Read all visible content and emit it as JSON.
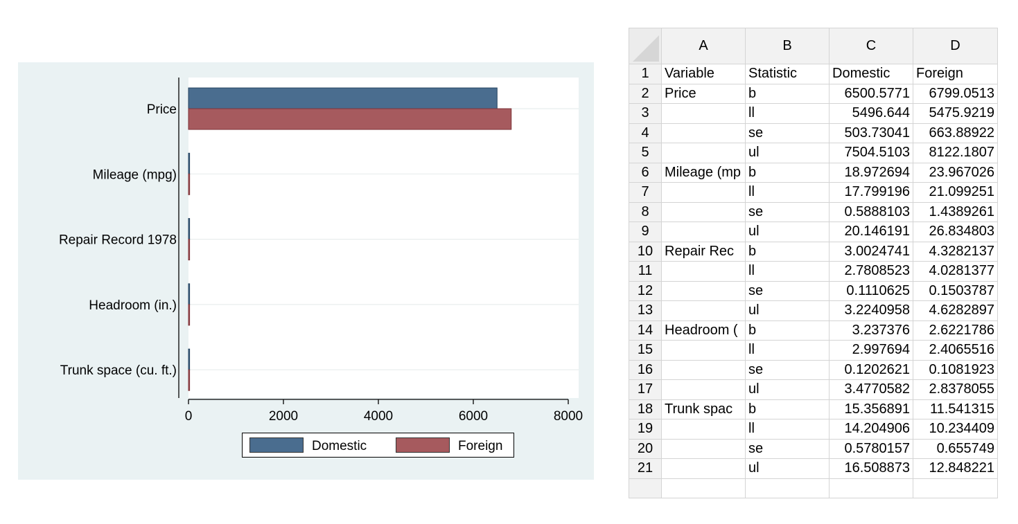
{
  "chart_data": {
    "type": "bar",
    "orientation": "horizontal",
    "categories": [
      "Price",
      "Mileage (mpg)",
      "Repair Record 1978",
      "Headroom (in.)",
      "Trunk space (cu. ft.)"
    ],
    "series": [
      {
        "name": "Domestic",
        "color": "#4a6d8f",
        "values": [
          6500.5771,
          18.972694,
          3.0024741,
          3.237376,
          15.356891
        ]
      },
      {
        "name": "Foreign",
        "color": "#a65a5e",
        "values": [
          6799.0513,
          23.967026,
          4.3282137,
          2.6221786,
          11.541315
        ]
      }
    ],
    "xticks": [
      "0",
      "2000",
      "4000",
      "6000",
      "8000"
    ],
    "xlim": [
      0,
      8000
    ],
    "legend_position": "bottom",
    "grid": true
  },
  "sheet": {
    "columns": [
      "A",
      "B",
      "C",
      "D"
    ],
    "rows": [
      {
        "n": "1",
        "a": "Variable",
        "b": "Statistic",
        "c": "Domestic",
        "d": "Foreign",
        "header": true
      },
      {
        "n": "2",
        "a": "Price",
        "b": "b",
        "c": "6500.5771",
        "d": "6799.0513"
      },
      {
        "n": "3",
        "a": "",
        "b": "ll",
        "c": "5496.644",
        "d": "5475.9219"
      },
      {
        "n": "4",
        "a": "",
        "b": "se",
        "c": "503.73041",
        "d": "663.88922"
      },
      {
        "n": "5",
        "a": "",
        "b": "ul",
        "c": "7504.5103",
        "d": "8122.1807"
      },
      {
        "n": "6",
        "a": "Mileage (mp",
        "b": "b",
        "c": "18.972694",
        "d": "23.967026"
      },
      {
        "n": "7",
        "a": "",
        "b": "ll",
        "c": "17.799196",
        "d": "21.099251"
      },
      {
        "n": "8",
        "a": "",
        "b": "se",
        "c": "0.5888103",
        "d": "1.4389261"
      },
      {
        "n": "9",
        "a": "",
        "b": "ul",
        "c": "20.146191",
        "d": "26.834803"
      },
      {
        "n": "10",
        "a": "Repair Rec",
        "b": "b",
        "c": "3.0024741",
        "d": "4.3282137"
      },
      {
        "n": "11",
        "a": "",
        "b": "ll",
        "c": "2.7808523",
        "d": "4.0281377"
      },
      {
        "n": "12",
        "a": "",
        "b": "se",
        "c": "0.1110625",
        "d": "0.1503787"
      },
      {
        "n": "13",
        "a": "",
        "b": "ul",
        "c": "3.2240958",
        "d": "4.6282897"
      },
      {
        "n": "14",
        "a": "Headroom (",
        "b": "b",
        "c": "3.237376",
        "d": "2.6221786"
      },
      {
        "n": "15",
        "a": "",
        "b": "ll",
        "c": "2.997694",
        "d": "2.4065516"
      },
      {
        "n": "16",
        "a": "",
        "b": "se",
        "c": "0.1202621",
        "d": "0.1081923"
      },
      {
        "n": "17",
        "a": "",
        "b": "ul",
        "c": "3.4770582",
        "d": "2.8378055"
      },
      {
        "n": "18",
        "a": "Trunk spac",
        "b": "b",
        "c": "15.356891",
        "d": "11.541315"
      },
      {
        "n": "19",
        "a": "",
        "b": "ll",
        "c": "14.204906",
        "d": "10.234409"
      },
      {
        "n": "20",
        "a": "",
        "b": "se",
        "c": "0.5780157",
        "d": "0.655749"
      },
      {
        "n": "21",
        "a": "",
        "b": "ul",
        "c": "16.508873",
        "d": "12.848221"
      },
      {
        "n": "",
        "a": "",
        "b": "",
        "c": "",
        "d": ""
      }
    ]
  }
}
